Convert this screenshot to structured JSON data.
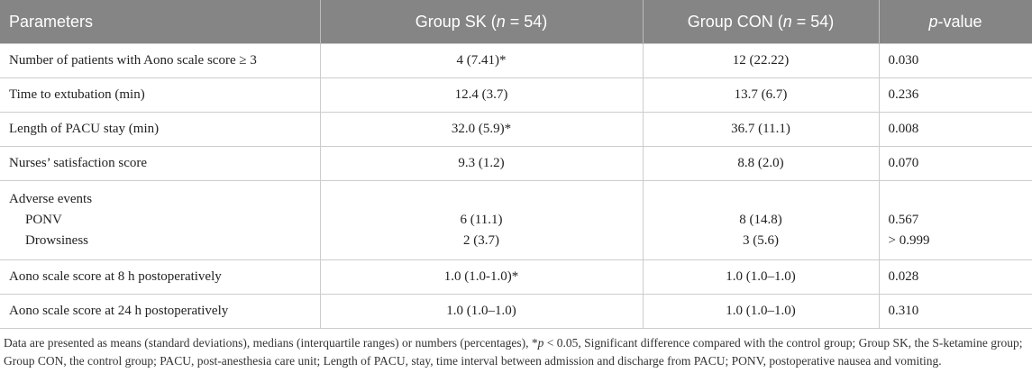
{
  "table": {
    "header": [
      [
        {
          "text": "Parameters"
        }
      ],
      [
        {
          "text": "Group SK ("
        },
        {
          "text": "n",
          "italic": true
        },
        {
          "text": " = 54)"
        }
      ],
      [
        {
          "text": "Group CON ("
        },
        {
          "text": "n",
          "italic": true
        },
        {
          "text": " = 54)"
        }
      ],
      [
        {
          "text": "p",
          "italic": true
        },
        {
          "text": "-value"
        }
      ]
    ],
    "rows": [
      {
        "cells": [
          "Number of patients with Aono scale score ≥ 3",
          "4 (7.41)*",
          "12 (22.22)",
          "0.030"
        ]
      },
      {
        "cells": [
          "Time to extubation (min)",
          "12.4 (3.7)",
          "13.7 (6.7)",
          "0.236"
        ]
      },
      {
        "cells": [
          "Length of PACU stay (min)",
          "32.0 (5.9)*",
          "36.7 (11.1)",
          "0.008"
        ]
      },
      {
        "cells": [
          "Nurses’ satisfaction score",
          "9.3 (1.2)",
          "8.8 (2.0)",
          "0.070"
        ]
      },
      {
        "label": "Adverse events",
        "items": [
          [
            "PONV",
            "6 (11.1)",
            "8 (14.8)",
            "0.567"
          ],
          [
            "Drowsiness",
            "2 (3.7)",
            "3 (5.6)",
            "> 0.999"
          ]
        ]
      },
      {
        "cells": [
          "Aono scale score at 8 h postoperatively",
          "1.0 (1.0-1.0)*",
          "1.0 (1.0–1.0)",
          "0.028"
        ]
      },
      {
        "cells": [
          "Aono scale score at 24 h postoperatively",
          "1.0 (1.0–1.0)",
          "1.0 (1.0–1.0)",
          "0.310"
        ]
      }
    ],
    "footnote": [
      {
        "text": "Data are presented as means (standard deviations), medians (interquartile ranges) or numbers (percentages), *"
      },
      {
        "text": "p",
        "italic": true
      },
      {
        "text": " < 0.05, Significant difference compared with the control group; Group SK, the S-ketamine group; Group CON, the control group; PACU, post-anesthesia care unit; Length of PACU, stay, time interval between admission and discharge from PACU; PONV, postoperative nausea and vomiting."
      }
    ]
  }
}
